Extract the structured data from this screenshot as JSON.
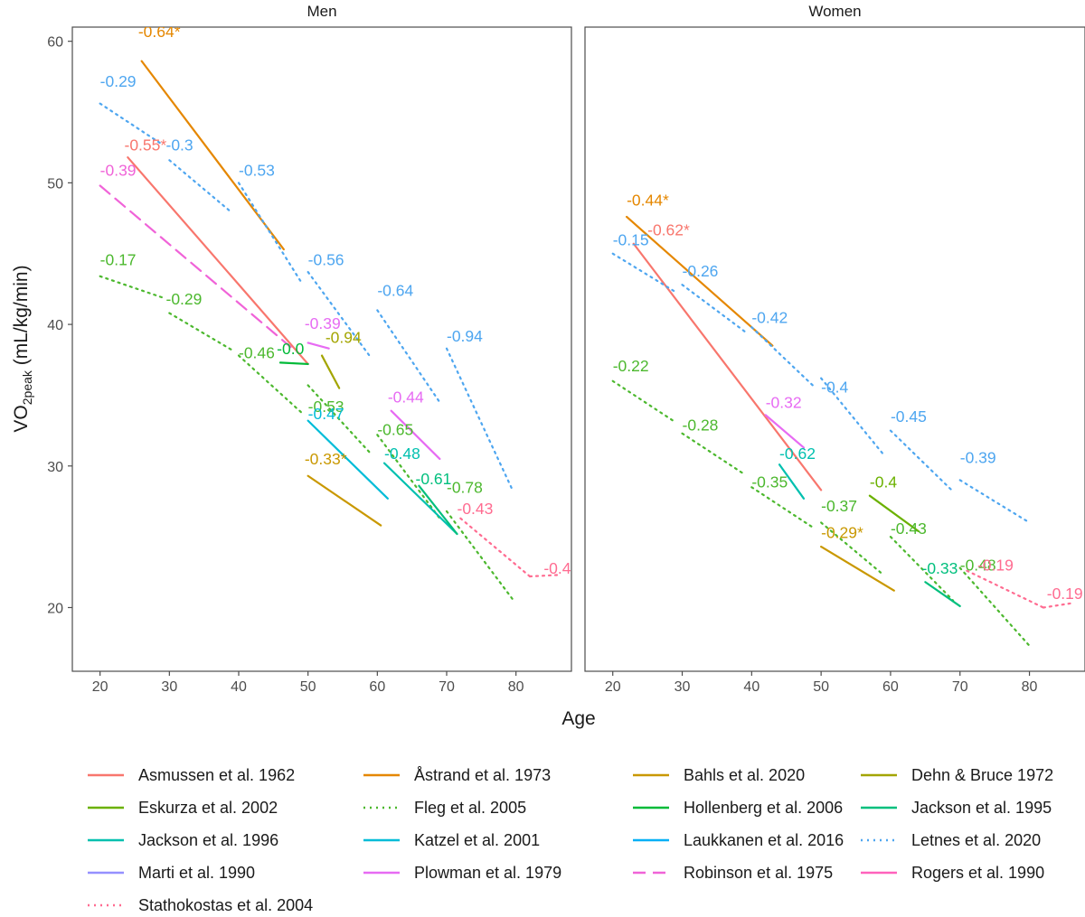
{
  "chart_data": {
    "type": "line",
    "xlabel": "Age",
    "ylabel": "VO2peak (mL/kg/min)",
    "ylabel_main": "VO",
    "ylabel_sub": "2peak",
    "ylabel_rest": " (mL/kg/min)",
    "xlim": [
      16,
      88
    ],
    "ylim": [
      15.5,
      61
    ],
    "x_ticks": [
      20,
      30,
      40,
      50,
      60,
      70,
      80
    ],
    "y_ticks": [
      20,
      30,
      40,
      50,
      60
    ],
    "grid": false,
    "legend_position": "bottom",
    "legend_columns": 4,
    "facets": [
      {
        "title": "Men",
        "segments": [
          {
            "study": "Åstrand et al. 1973",
            "points": [
              [
                26,
                58.6
              ],
              [
                46.5,
                45.3
              ]
            ],
            "label": "-0.64*",
            "label_at": [
              25.5,
              60.3
            ]
          },
          {
            "study": "Letnes et al. 2020",
            "points": [
              [
                20,
                55.6
              ],
              [
                29,
                52.7
              ]
            ],
            "label": "-0.29",
            "label_at": [
              20,
              56.8
            ]
          },
          {
            "study": "Letnes et al. 2020",
            "points": [
              [
                30,
                51.6
              ],
              [
                39,
                47.9
              ]
            ],
            "label": "-0.3",
            "label_at": [
              29.5,
              52.3
            ]
          },
          {
            "study": "Letnes et al. 2020",
            "points": [
              [
                40,
                50
              ],
              [
                49,
                43
              ]
            ],
            "label": "-0.53",
            "label_at": [
              40,
              50.5
            ]
          },
          {
            "study": "Letnes et al. 2020",
            "points": [
              [
                50,
                43.7
              ],
              [
                59,
                37.7
              ]
            ],
            "label": "-0.56",
            "label_at": [
              50,
              44.2
            ]
          },
          {
            "study": "Letnes et al. 2020",
            "points": [
              [
                60,
                41
              ],
              [
                69,
                34.5
              ]
            ],
            "label": "-0.64",
            "label_at": [
              60,
              42
            ]
          },
          {
            "study": "Letnes et al. 2020",
            "points": [
              [
                70,
                38.3
              ],
              [
                79.5,
                28.3
              ]
            ],
            "label": "-0.94",
            "label_at": [
              70,
              38.8
            ]
          },
          {
            "study": "Asmussen et al. 1962",
            "points": [
              [
                24,
                51.8
              ],
              [
                50,
                37.2
              ]
            ],
            "label": "-0.55*",
            "label_at": [
              23.5,
              52.3
            ]
          },
          {
            "study": "Robinson et al. 1975",
            "points": [
              [
                20,
                49.8
              ],
              [
                47.5,
                38.4
              ]
            ],
            "label": "-0.39",
            "label_at": [
              20,
              50.5
            ]
          },
          {
            "study": "Fleg et al. 2005",
            "points": [
              [
                20,
                43.4
              ],
              [
                29,
                41.9
              ]
            ],
            "label": "-0.17",
            "label_at": [
              20,
              44.2
            ]
          },
          {
            "study": "Fleg et al. 2005",
            "points": [
              [
                30,
                40.8
              ],
              [
                39,
                38.2
              ]
            ],
            "label": "-0.29",
            "label_at": [
              29.5,
              41.4
            ]
          },
          {
            "study": "Fleg et al. 2005",
            "points": [
              [
                40,
                37.8
              ],
              [
                49,
                33.8
              ]
            ],
            "label": "-0.46",
            "label_at": [
              40,
              37.6
            ]
          },
          {
            "study": "Fleg et al. 2005",
            "points": [
              [
                50,
                35.7
              ],
              [
                59,
                30.9
              ]
            ],
            "label": "-0.53",
            "label_at": [
              50,
              33.8
            ]
          },
          {
            "study": "Fleg et al. 2005",
            "points": [
              [
                60,
                32.2
              ],
              [
                69,
                26.3
              ]
            ],
            "label": "-0.65",
            "label_at": [
              60,
              32.2
            ]
          },
          {
            "study": "Fleg et al. 2005",
            "points": [
              [
                70,
                26.8
              ],
              [
                79.5,
                20.6
              ]
            ],
            "label": "-0.78",
            "label_at": [
              70,
              28.1
            ]
          },
          {
            "study": "Hollenberg et al. 2006",
            "points": [
              [
                46,
                37.3
              ],
              [
                50,
                37.2
              ]
            ],
            "label": "-0.0",
            "label_at": [
              45.5,
              37.9
            ]
          },
          {
            "study": "Dehn & Bruce 1972",
            "points": [
              [
                52,
                37.8
              ],
              [
                54.5,
                35.5
              ]
            ],
            "label": "-0.94",
            "label_at": [
              52.5,
              38.7
            ]
          },
          {
            "study": "Plowman et al. 1979",
            "points": [
              [
                50,
                38.7
              ],
              [
                53,
                38.3
              ]
            ],
            "label": "-0.39",
            "label_at": [
              49.5,
              39.7
            ]
          },
          {
            "study": "Katzel et al. 2001",
            "points": [
              [
                50,
                33.2
              ],
              [
                61.5,
                27.7
              ]
            ],
            "label": "-0.47",
            "label_at": [
              50,
              33.3
            ]
          },
          {
            "study": "Bahls et al. 2020",
            "points": [
              [
                50,
                29.3
              ],
              [
                60.5,
                25.8
              ]
            ],
            "label": "-0.33*",
            "label_at": [
              49.5,
              30.1
            ]
          },
          {
            "study": "Jackson et al. 1996",
            "points": [
              [
                61,
                30.2
              ],
              [
                71.5,
                25.2
              ]
            ],
            "label": "-0.48",
            "label_at": [
              61,
              30.5
            ]
          },
          {
            "study": "Plowman et al. 1979",
            "points": [
              [
                62,
                33.9
              ],
              [
                69,
                30.5
              ]
            ],
            "label": "-0.44",
            "label_at": [
              61.5,
              34.5
            ]
          },
          {
            "study": "Jackson et al. 1995",
            "points": [
              [
                66,
                28.6
              ],
              [
                71.5,
                25.2
              ]
            ],
            "label": "-0.61",
            "label_at": [
              65.5,
              28.7
            ]
          },
          {
            "study": "Stathokostas et al. 2004",
            "points": [
              [
                72,
                26.3
              ],
              [
                82,
                22.2
              ]
            ],
            "label": "-0.43",
            "label_at": [
              71.5,
              26.6
            ]
          },
          {
            "study": "Stathokostas et al. 2004",
            "points": [
              [
                82,
                22.2
              ],
              [
                86,
                22.3
              ]
            ],
            "label": "-0.4",
            "label_at": [
              84,
              22.4
            ]
          }
        ]
      },
      {
        "title": "Women",
        "segments": [
          {
            "study": "Åstrand et al. 1973",
            "points": [
              [
                22,
                47.6
              ],
              [
                43,
                38.5
              ]
            ],
            "label": "-0.44*",
            "label_at": [
              22,
              48.4
            ]
          },
          {
            "study": "Asmussen et al. 1962",
            "points": [
              [
                23,
                45.7
              ],
              [
                50,
                28.3
              ]
            ],
            "label": "-0.62*",
            "label_at": [
              25,
              46.3
            ]
          },
          {
            "study": "Letnes et al. 2020",
            "points": [
              [
                20,
                45
              ],
              [
                29,
                42.3
              ]
            ],
            "label": "-0.15",
            "label_at": [
              20,
              45.6
            ]
          },
          {
            "study": "Letnes et al. 2020",
            "points": [
              [
                30,
                42.8
              ],
              [
                39,
                39.5
              ]
            ],
            "label": "-0.26",
            "label_at": [
              30,
              43.4
            ]
          },
          {
            "study": "Letnes et al. 2020",
            "points": [
              [
                40,
                39.8
              ],
              [
                49,
                35.6
              ]
            ],
            "label": "-0.42",
            "label_at": [
              40,
              40.1
            ]
          },
          {
            "study": "Letnes et al. 2020",
            "points": [
              [
                50,
                36.2
              ],
              [
                59,
                30.8
              ]
            ],
            "label": "-0.4",
            "label_at": [
              50,
              35.2
            ]
          },
          {
            "study": "Letnes et al. 2020",
            "points": [
              [
                60,
                32.5
              ],
              [
                69,
                28.2
              ]
            ],
            "label": "-0.45",
            "label_at": [
              60,
              33.1
            ]
          },
          {
            "study": "Letnes et al. 2020",
            "points": [
              [
                70,
                29
              ],
              [
                80,
                26
              ]
            ],
            "label": "-0.39",
            "label_at": [
              70,
              30.2
            ]
          },
          {
            "study": "Fleg et al. 2005",
            "points": [
              [
                20,
                36
              ],
              [
                29,
                33.1
              ]
            ],
            "label": "-0.22",
            "label_at": [
              20,
              36.7
            ]
          },
          {
            "study": "Fleg et al. 2005",
            "points": [
              [
                30,
                32.3
              ],
              [
                39,
                29.4
              ]
            ],
            "label": "-0.28",
            "label_at": [
              30,
              32.5
            ]
          },
          {
            "study": "Fleg et al. 2005",
            "points": [
              [
                40,
                28.5
              ],
              [
                49,
                25.6
              ]
            ],
            "label": "-0.35",
            "label_at": [
              40,
              28.5
            ]
          },
          {
            "study": "Fleg et al. 2005",
            "points": [
              [
                50,
                26
              ],
              [
                59,
                22.3
              ]
            ],
            "label": "-0.37",
            "label_at": [
              50,
              26.8
            ]
          },
          {
            "study": "Fleg et al. 2005",
            "points": [
              [
                60,
                25
              ],
              [
                69,
                20.5
              ]
            ],
            "label": "-0.43",
            "label_at": [
              60,
              25.2
            ]
          },
          {
            "study": "Fleg et al. 2005",
            "points": [
              [
                70,
                22.8
              ],
              [
                80,
                17.3
              ]
            ],
            "label": "-0.48",
            "label_at": [
              70,
              22.6
            ]
          },
          {
            "study": "Eskurza et al. 2002",
            "points": [
              [
                57,
                27.9
              ],
              [
                64,
                25.4
              ]
            ],
            "label": "-0.4",
            "label_at": [
              57,
              28.5
            ]
          },
          {
            "study": "Plowman et al. 1979",
            "points": [
              [
                42,
                33.6
              ],
              [
                47.5,
                31.3
              ]
            ],
            "label": "-0.32",
            "label_at": [
              42,
              34.1
            ]
          },
          {
            "study": "Jackson et al. 1996",
            "points": [
              [
                44,
                30.1
              ],
              [
                47.5,
                27.7
              ]
            ],
            "label": "-0.62",
            "label_at": [
              44,
              30.5
            ]
          },
          {
            "study": "Bahls et al. 2020",
            "points": [
              [
                50,
                24.3
              ],
              [
                60.5,
                21.2
              ]
            ],
            "label": "-0.29*",
            "label_at": [
              50,
              24.9
            ]
          },
          {
            "study": "Jackson et al. 1995",
            "points": [
              [
                65,
                21.8
              ],
              [
                70,
                20.1
              ]
            ],
            "label": "-0.33",
            "label_at": [
              64.5,
              22.4
            ]
          },
          {
            "study": "Stathokostas et al. 2004",
            "points": [
              [
                71,
                22.6
              ],
              [
                82,
                20
              ]
            ],
            "label": "-0.19",
            "label_at": [
              72.5,
              22.6
            ]
          },
          {
            "study": "Stathokostas et al. 2004",
            "points": [
              [
                82,
                20
              ],
              [
                86,
                20.3
              ]
            ],
            "label": "-0.19",
            "label_at": [
              82.5,
              20.6
            ]
          }
        ]
      }
    ],
    "legend": [
      {
        "name": "Asmussen et al. 1962",
        "color": "#F8766D",
        "dash": "solid"
      },
      {
        "name": "Åstrand et al. 1973",
        "color": "#E58700",
        "dash": "solid"
      },
      {
        "name": "Bahls et al. 2020",
        "color": "#C99800",
        "dash": "solid"
      },
      {
        "name": "Dehn & Bruce 1972",
        "color": "#A3A500",
        "dash": "solid"
      },
      {
        "name": "Eskurza et al. 2002",
        "color": "#6BB100",
        "dash": "solid"
      },
      {
        "name": "Fleg et al. 2005",
        "color": "#4CB82E",
        "dash": "dotted"
      },
      {
        "name": "Hollenberg et al. 2006",
        "color": "#00BA38",
        "dash": "solid"
      },
      {
        "name": "Jackson et al. 1995",
        "color": "#00BF7D",
        "dash": "solid"
      },
      {
        "name": "Jackson et al. 1996",
        "color": "#00C0AF",
        "dash": "solid"
      },
      {
        "name": "Katzel et al. 2001",
        "color": "#00BCD8",
        "dash": "solid"
      },
      {
        "name": "Laukkanen et al. 2016",
        "color": "#00B0F6",
        "dash": "solid"
      },
      {
        "name": "Letnes et al. 2020",
        "color": "#4EA6F0",
        "dash": "dotted"
      },
      {
        "name": "Marti et al. 1990",
        "color": "#9590FF",
        "dash": "solid"
      },
      {
        "name": "Plowman et al. 1979",
        "color": "#E76BF3",
        "dash": "solid"
      },
      {
        "name": "Robinson et al. 1975",
        "color": "#F063D8",
        "dash": "dashed"
      },
      {
        "name": "Rogers et al. 1990",
        "color": "#FF62BC",
        "dash": "solid"
      },
      {
        "name": "Stathokostas et al. 2004",
        "color": "#FF6C91",
        "dash": "dotted"
      }
    ]
  }
}
